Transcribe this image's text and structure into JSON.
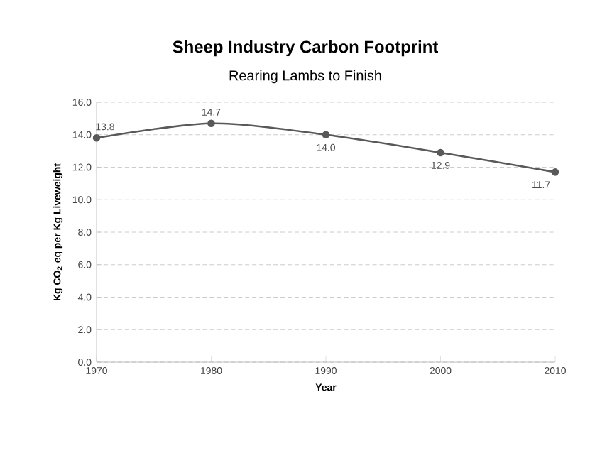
{
  "chart_data": {
    "type": "line",
    "title": "Sheep Industry Carbon Footprint",
    "subtitle": "Rearing Lambs to Finish",
    "xlabel": "Year",
    "ylabel": "Kg CO$_{2}$ eq per Kg Liveweight",
    "x": [
      1970,
      1980,
      1990,
      2000,
      2010
    ],
    "series": [
      {
        "color": "#595959",
        "values": [
          13.8,
          14.7,
          14.0,
          12.9,
          11.7
        ],
        "value_labels": [
          "13.8",
          "14.7",
          "14.0",
          "12.9",
          "11.7"
        ]
      }
    ],
    "xlim": [
      1970,
      2010
    ],
    "xticks": [
      1970,
      1980,
      1990,
      2000,
      2010
    ],
    "ylim": [
      0,
      16
    ],
    "yticks": [
      {
        "value": 0,
        "label": "0.0"
      },
      {
        "value": 2,
        "label": "2.0"
      },
      {
        "value": 4,
        "label": "4.0"
      },
      {
        "value": 6,
        "label": "6.0"
      },
      {
        "value": 8,
        "label": "8.0"
      },
      {
        "value": 10,
        "label": "10.0"
      },
      {
        "value": 12,
        "label": "12.0"
      },
      {
        "value": 14,
        "label": "14.0"
      },
      {
        "value": 16,
        "label": "16.0"
      }
    ],
    "grid": "y",
    "marker": "circle",
    "line_style": "solid"
  }
}
